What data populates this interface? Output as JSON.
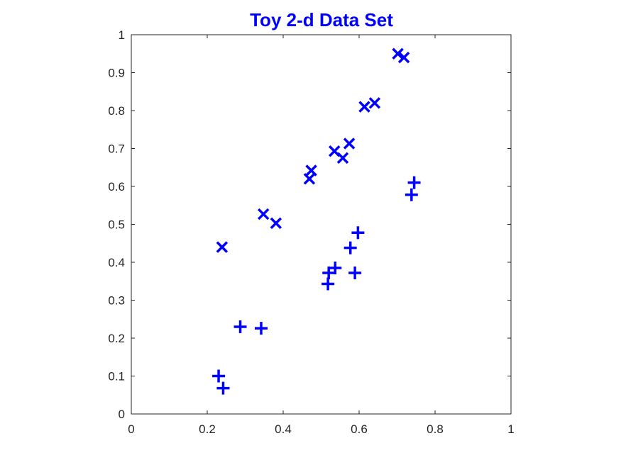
{
  "chart_data": {
    "type": "scatter",
    "title": "Toy 2-d Data Set",
    "xlabel": "",
    "ylabel": "",
    "xlim": [
      0,
      1
    ],
    "ylim": [
      0,
      1
    ],
    "xticks": [
      "0",
      "0.2",
      "0.4",
      "0.6",
      "0.8",
      "1"
    ],
    "yticks": [
      "0",
      "0.1",
      "0.2",
      "0.3",
      "0.4",
      "0.5",
      "0.6",
      "0.7",
      "0.8",
      "0.9",
      "1"
    ],
    "grid": false,
    "colors": {
      "title": "#0000ff",
      "markers": "#0000ff",
      "axes": "#262626"
    },
    "series": [
      {
        "marker": "x",
        "x": [
          0.239,
          0.348,
          0.381,
          0.469,
          0.474,
          0.535,
          0.557,
          0.574,
          0.614,
          0.641,
          0.702,
          0.718
        ],
        "y": [
          0.44,
          0.527,
          0.503,
          0.62,
          0.642,
          0.693,
          0.675,
          0.713,
          0.81,
          0.82,
          0.95,
          0.94
        ]
      },
      {
        "marker": "+",
        "x": [
          0.23,
          0.242,
          0.287,
          0.342,
          0.518,
          0.52,
          0.537,
          0.577,
          0.589,
          0.597,
          0.738,
          0.745
        ],
        "y": [
          0.1,
          0.068,
          0.23,
          0.226,
          0.343,
          0.372,
          0.385,
          0.438,
          0.372,
          0.478,
          0.578,
          0.61
        ]
      }
    ]
  }
}
